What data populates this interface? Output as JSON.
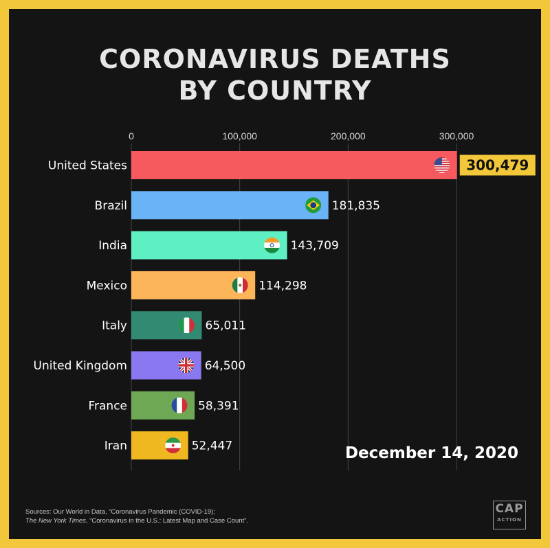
{
  "title_lines": [
    "CORONAVIRUS DEATHS",
    "BY COUNTRY"
  ],
  "date_label": "December 14, 2020",
  "sources": {
    "line1": "Sources: Our World in Data, “Coronavirus Pandemic (COVID-19);",
    "line2_italic": "The New York Times",
    "line2_rest": ", “Coronavirus in the U.S.: Latest Map and Case Count”."
  },
  "logo": {
    "main": "CAP",
    "sub": "ACTION"
  },
  "colors": {
    "frame": "#f2c73a",
    "background": "#141414",
    "highlight_label_bg": "#f2c73a"
  },
  "chart_data": {
    "type": "bar",
    "orientation": "horizontal",
    "categories": [
      "United States",
      "Brazil",
      "India",
      "Mexico",
      "Italy",
      "United Kingdom",
      "France",
      "Iran"
    ],
    "values": [
      300479,
      181835,
      143709,
      114298,
      65011,
      64500,
      58391,
      52447
    ],
    "value_labels": [
      "300,479",
      "181,835",
      "143,709",
      "114,298",
      "65,011",
      "64,500",
      "58,391",
      "52,447"
    ],
    "bar_colors": [
      "#f65a5e",
      "#6ab3f6",
      "#5ef0c2",
      "#fdb55a",
      "#338a72",
      "#8a78f0",
      "#6fa854",
      "#efb720"
    ],
    "flags": [
      "united-states",
      "brazil",
      "india",
      "mexico",
      "italy",
      "united-kingdom",
      "france",
      "iran"
    ],
    "x_ticks": [
      0,
      100000,
      200000,
      300000
    ],
    "x_tick_labels": [
      "0",
      "100,000",
      "200,000",
      "300,000"
    ],
    "xlim": [
      0,
      300000
    ],
    "grid": true,
    "title": "CORONAVIRUS DEATHS BY COUNTRY",
    "xlabel": "",
    "ylabel": ""
  }
}
